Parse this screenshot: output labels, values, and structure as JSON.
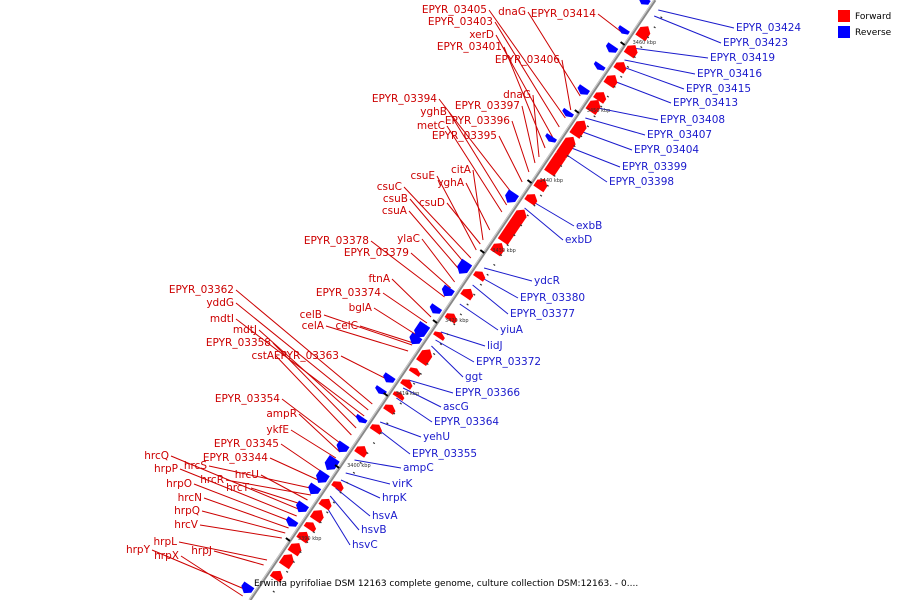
{
  "caption": "Erwinia pyrifoliae DSM 12163 complete genome, culture collection DSM:12163. - 0....",
  "legend": [
    {
      "label": "Forward",
      "color": "#ff0000"
    },
    {
      "label": "Reverse",
      "color": "#0000ff"
    }
  ],
  "colors": {
    "forward": "#ff0000",
    "reverse": "#0000ff",
    "forward_label": "#cc0000",
    "reverse_label": "#1a1acc",
    "backbone": "#888888"
  },
  "ticks": [
    "3390 kbp",
    "3400 kbp",
    "3410 kbp",
    "3420 kbp",
    "3430 kbp",
    "3440 kbp",
    "3450 kbp",
    "3460 kbp"
  ],
  "forward_labels": [
    "EPYR_03405",
    "EPYR_03403",
    "xerD",
    "EPYR_03401",
    "dnaG",
    "EPYR_03414",
    "EPYR_03406",
    "dnaG",
    "EPYR_03394",
    "yghB",
    "EPYR_03397",
    "metC",
    "EPYR_03396",
    "EPYR_03395",
    "citA",
    "csuE",
    "yghA",
    "csuC",
    "csuB",
    "csuD",
    "csuA",
    "EPYR_03378",
    "ylaC",
    "EPYR_03379",
    "ftnA",
    "EPYR_03374",
    "EPYR_03362",
    "bglA",
    "yddG",
    "celB",
    "mdtI",
    "celA",
    "celC",
    "mdtJ",
    "EPYR_03358",
    "cstA",
    "EPYR_03363",
    "EPYR_03354",
    "ampR",
    "ykfE",
    "EPYR_03345",
    "EPYR_03344",
    "hrcQ",
    "hrcS",
    "hrpP",
    "hrcR",
    "hrcU",
    "hrpO",
    "hrcT",
    "hrcN",
    "hrpQ",
    "hrcV",
    "hrpL",
    "hrpY",
    "hrpX",
    "hrpJ"
  ],
  "reverse_labels": [
    "EPYR_03424",
    "EPYR_03423",
    "EPYR_03419",
    "EPYR_03416",
    "EPYR_03415",
    "EPYR_03413",
    "EPYR_03408",
    "EPYR_03407",
    "EPYR_03404",
    "EPYR_03399",
    "EPYR_03398",
    "exbB",
    "exbD",
    "ydcR",
    "EPYR_03380",
    "EPYR_03377",
    "yiuA",
    "lidJ",
    "EPYR_03372",
    "ggt",
    "EPYR_03366",
    "ascG",
    "EPYR_03364",
    "yehU",
    "EPYR_03355",
    "ampC",
    "virK",
    "hrpK",
    "hsvA",
    "hsvB",
    "hsvC"
  ]
}
